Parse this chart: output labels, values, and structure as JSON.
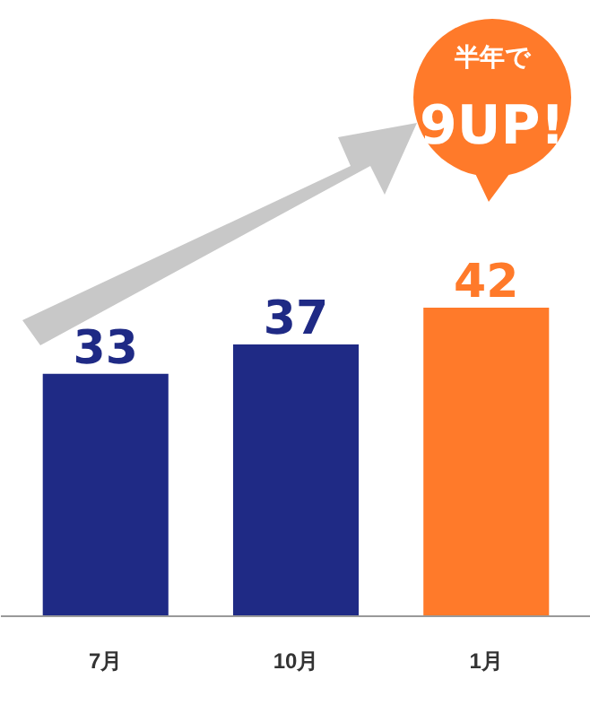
{
  "chart_data": {
    "type": "bar",
    "categories": [
      "7月",
      "10月",
      "1月"
    ],
    "values": [
      33,
      37,
      42
    ],
    "colors": [
      "#1f2a85",
      "#1f2a85",
      "#ff7a2a"
    ],
    "data_labels": true,
    "tick_labels": "x",
    "annotations": [
      "半年で",
      "9UP!"
    ]
  }
}
